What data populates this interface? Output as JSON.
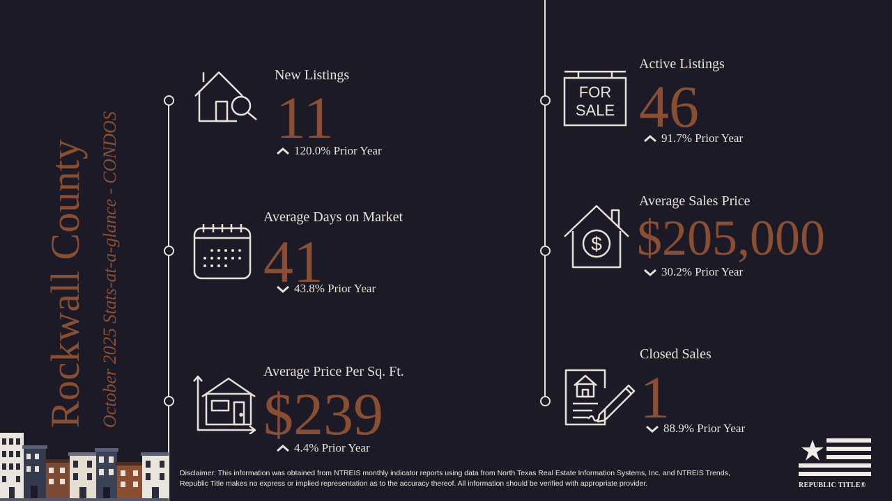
{
  "title": {
    "county": "Rockwall County",
    "subtitle": "October 2025 Stats-at-a-glance - CONDOS"
  },
  "stats": {
    "new_listings": {
      "label": "New Listings",
      "value": "11",
      "change": "120.0% Prior Year",
      "direction": "up"
    },
    "avg_days": {
      "label": "Average Days on Market",
      "value": "41",
      "change": "43.8% Prior Year",
      "direction": "down"
    },
    "avg_price_sqft": {
      "label": "Average Price Per Sq. Ft.",
      "value": "$239",
      "change": "4.4% Prior Year",
      "direction": "up"
    },
    "active_listings": {
      "label": "Active Listings",
      "value": "46",
      "change": "91.7% Prior Year",
      "direction": "up"
    },
    "avg_sales_price": {
      "label": "Average Sales Price",
      "value": "$205,000",
      "change": "30.2% Prior Year",
      "direction": "down"
    },
    "closed_sales": {
      "label": "Closed Sales",
      "value": "1",
      "change": "88.9% Prior Year",
      "direction": "down"
    }
  },
  "icons": {
    "for_sale_sign": "FOR SALE",
    "names": [
      "house-search-icon",
      "calendar-icon",
      "house-chart-icon",
      "for-sale-sign-icon",
      "house-dollar-icon",
      "contract-sign-icon",
      "chevron-up-icon",
      "chevron-down-icon"
    ]
  },
  "disclaimer": "Disclaimer: This information was obtained from NTREIS monthly indicator reports using data from North Texas Real Estate Information Systems, Inc. and NTREIS Trends, Republic Title makes no express or implied representation as to the accuracy thereof. All information should be verified with appropriate provider.",
  "logo": {
    "text": "REPUBLIC TITLE®"
  },
  "colors": {
    "background": "#1c1a26",
    "accent": "#8a4f33",
    "foreground": "#e8e1d8"
  }
}
